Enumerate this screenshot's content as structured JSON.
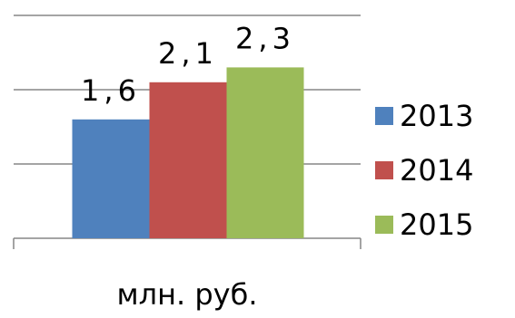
{
  "chart_data": {
    "type": "bar",
    "categories": [
      "млн. руб."
    ],
    "series": [
      {
        "name": "2013",
        "color": "#4f81bd",
        "values": [
          1.6
        ],
        "value_labels": [
          "1,6"
        ]
      },
      {
        "name": "2014",
        "color": "#c0504d",
        "values": [
          2.1
        ],
        "value_labels": [
          "2,1"
        ]
      },
      {
        "name": "2015",
        "color": "#9bbb59",
        "values": [
          2.3
        ],
        "value_labels": [
          "2,3"
        ]
      }
    ],
    "ylim": [
      0,
      3
    ],
    "yticks": [
      0,
      1,
      2,
      3
    ],
    "grid": true,
    "legend": "right"
  }
}
